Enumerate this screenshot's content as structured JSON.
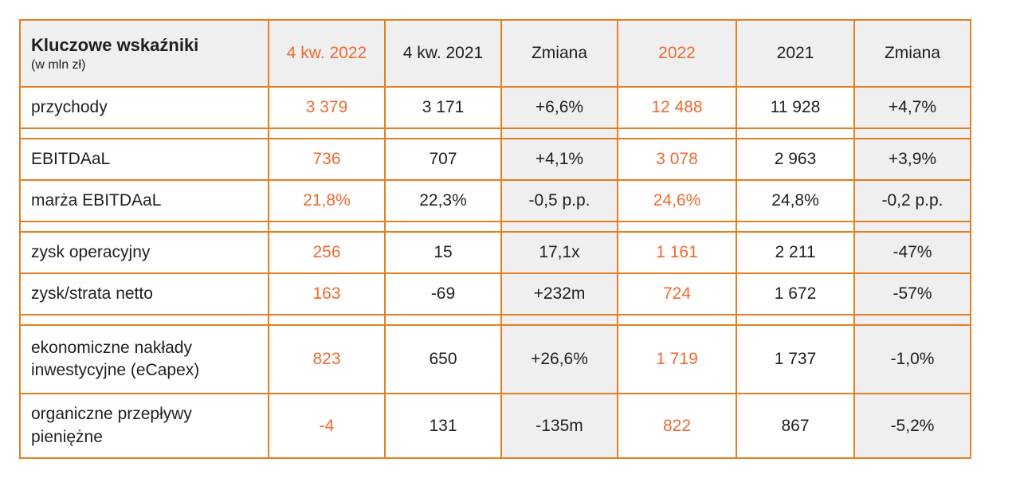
{
  "chart_data": {
    "type": "table",
    "title": "Kluczowe wskaźniki",
    "unit_note": "(w mln zł)",
    "columns": [
      "4 kw. 2022",
      "4 kw. 2021",
      "Zmiana",
      "2022",
      "2021",
      "Zmiana"
    ],
    "rows": [
      {
        "label": "przychody",
        "values": [
          "3 379",
          "3 171",
          "+6,6%",
          "12 488",
          "11 928",
          "+4,7%"
        ]
      },
      {
        "label": "EBITDAaL",
        "values": [
          "736",
          "707",
          "+4,1%",
          "3 078",
          "2 963",
          "+3,9%"
        ]
      },
      {
        "label": "marża EBITDAaL",
        "values": [
          "21,8%",
          "22,3%",
          "-0,5 p.p.",
          "24,6%",
          "24,8%",
          "-0,2 p.p."
        ]
      },
      {
        "label": "zysk operacyjny",
        "values": [
          "256",
          "15",
          "17,1x",
          "1 161",
          "2 211",
          "-47%"
        ]
      },
      {
        "label": "zysk/strata netto",
        "values": [
          "163",
          "-69",
          "+232m",
          "724",
          "1 672",
          "-57%"
        ]
      },
      {
        "label": "ekonomiczne nakłady inwestycyjne (eCapex)",
        "values": [
          "823",
          "650",
          "+26,6%",
          "1 719",
          "1 737",
          "-1,0%"
        ]
      },
      {
        "label": "organiczne przepływy pieniężne",
        "values": [
          "-4",
          "131",
          "-135m",
          "822",
          "867",
          "-5,2%"
        ]
      }
    ],
    "colors": {
      "accent_orange_text": "#ed6b30",
      "border_orange": "#e67e22",
      "shaded_cell_bg": "#efefef",
      "black_text": "#1f1f1f"
    },
    "layout_hints": {
      "highlighted_columns_orange_bold": [
        "4 kw. 2022",
        "2022"
      ],
      "gray_shaded_columns": [
        "Zmiana",
        "Zmiana"
      ],
      "section_breaks_after_rows": [
        0,
        2,
        4
      ]
    }
  }
}
